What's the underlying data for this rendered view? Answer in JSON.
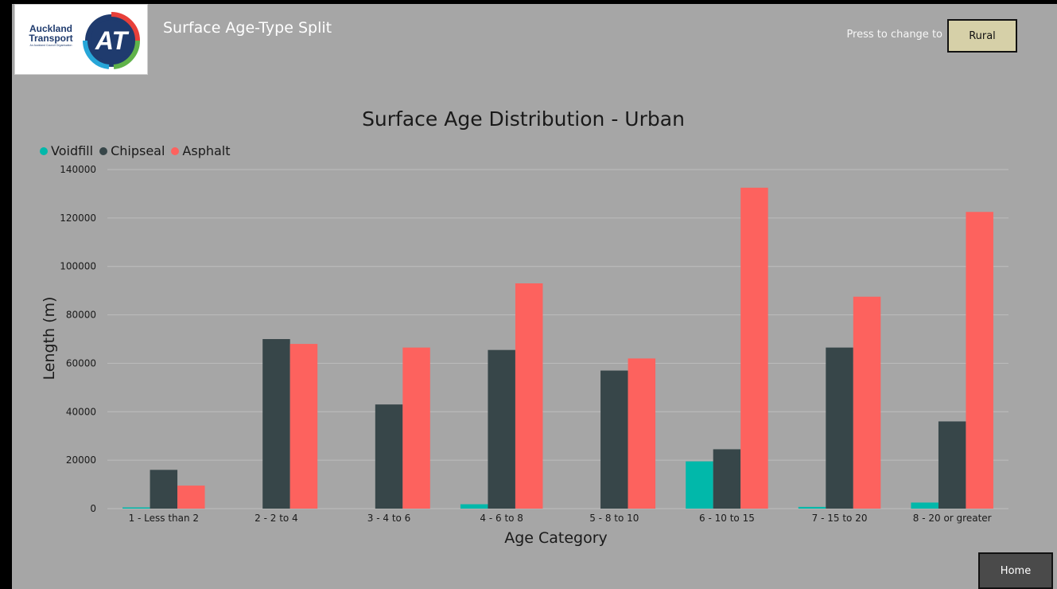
{
  "header": {
    "app_title": "Surface Age-Type Split",
    "press_label": "Press to change to",
    "toggle_button_label": "Rural",
    "home_button_label": "Home"
  },
  "logo": {
    "line1": "Auckland",
    "line2": "Transport",
    "tagline": "An Auckland Council Organisation",
    "mark_text": "AT"
  },
  "colors": {
    "Voidfill": "#01b8aa",
    "Chipseal": "#374649",
    "Asphalt": "#fd625e",
    "panel": "#a6a6a6"
  },
  "chart_data": {
    "type": "bar",
    "title": "Surface Age Distribution - Urban",
    "xlabel": "Age Category",
    "ylabel": "Length (m)",
    "ylim": [
      0,
      140000
    ],
    "yticks": [
      "0",
      "20000",
      "40000",
      "60000",
      "80000",
      "100000",
      "120000",
      "140000"
    ],
    "grid": true,
    "legend_position": "top-left",
    "categories": [
      "1 - Less than 2",
      "2 - 2 to 4",
      "3 - 4 to 6",
      "4 - 6 to 8",
      "5 - 8 to 10",
      "6 - 10 to 15",
      "7 - 15 to 20",
      "8 - 20 or greater"
    ],
    "series": [
      {
        "name": "Voidfill",
        "values": [
          500,
          0,
          0,
          1800,
          0,
          19500,
          700,
          2500
        ]
      },
      {
        "name": "Chipseal",
        "values": [
          16000,
          70000,
          43000,
          65500,
          57000,
          24500,
          66500,
          36000
        ]
      },
      {
        "name": "Asphalt",
        "values": [
          9500,
          68000,
          66500,
          93000,
          62000,
          132500,
          87500,
          122500
        ]
      }
    ]
  }
}
